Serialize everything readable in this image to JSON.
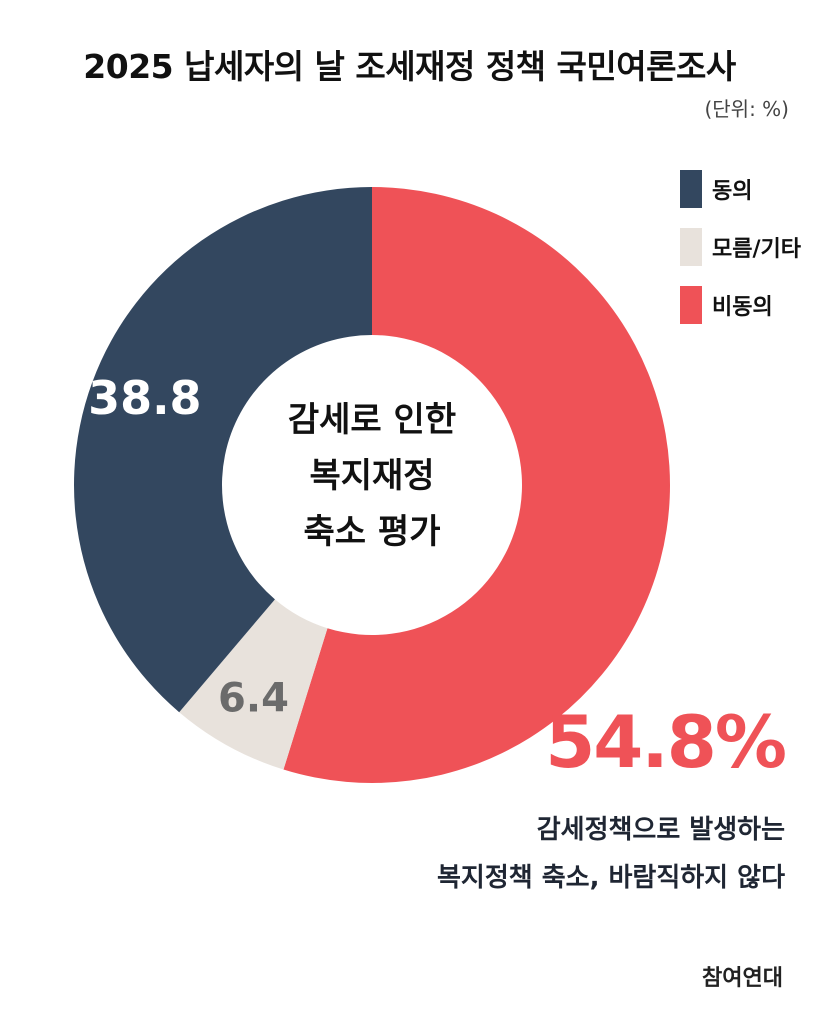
{
  "title": "2025 납세자의 날 조세재정 정책 국민여론조사",
  "unit": "(단위: %)",
  "center_text": [
    "감세로 인한",
    "복지재정",
    "축소 평가"
  ],
  "headline_pct": "54.8%",
  "note": [
    "감세정책으로 발생하는",
    "복지정책 축소, 바람직하지 않다"
  ],
  "source": "참여연대",
  "legend": [
    {
      "label": "동의",
      "color": "#33475f"
    },
    {
      "label": "모름/기타",
      "color": "#e8e2dc"
    },
    {
      "label": "비동의",
      "color": "#ef5257"
    }
  ],
  "chart_data": {
    "type": "pie",
    "categories": [
      "비동의",
      "모름/기타",
      "동의"
    ],
    "values": [
      54.8,
      6.4,
      38.8
    ],
    "colors": [
      "#ef5257",
      "#e8e2dc",
      "#33475f"
    ],
    "data_labels": [
      "",
      "6.4",
      "38.8"
    ],
    "data_label_colors": [
      "#ffffff",
      "#6b6b6b",
      "#ffffff"
    ],
    "donut": true,
    "start": "12 o'clock",
    "direction": "clockwise",
    "legend_position": "top-right",
    "units": "%"
  }
}
